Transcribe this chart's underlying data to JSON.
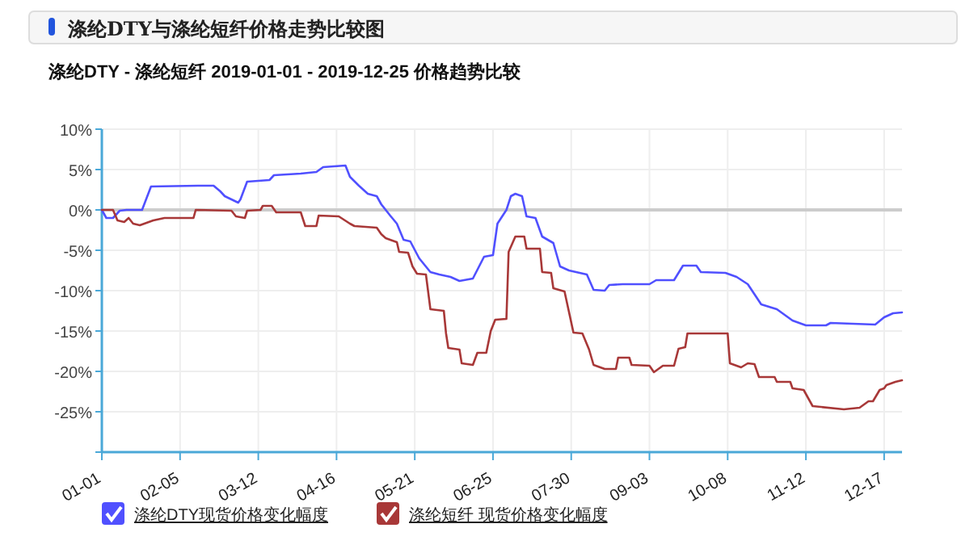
{
  "chart_data": {
    "type": "line",
    "title": "涤纶DTY与涤纶短纤价格走势比较图",
    "subtitle": "涤纶DTY - 涤纶短纤 2019-01-01 - 2019-12-25 价格趋势比较",
    "xlim": [
      "2019-01-01",
      "2019-12-25"
    ],
    "xticks": [
      {
        "value": "2019-01-01",
        "label": "01-01"
      },
      {
        "value": "2019-02-05",
        "label": "02-05"
      },
      {
        "value": "2019-03-12",
        "label": "03-12"
      },
      {
        "value": "2019-04-16",
        "label": "04-16"
      },
      {
        "value": "2019-05-21",
        "label": "05-21"
      },
      {
        "value": "2019-06-25",
        "label": "06-25"
      },
      {
        "value": "2019-07-30",
        "label": "07-30"
      },
      {
        "value": "2019-09-03",
        "label": "09-03"
      },
      {
        "value": "2019-10-08",
        "label": "10-08"
      },
      {
        "value": "2019-11-12",
        "label": "11-12"
      },
      {
        "value": "2019-12-17",
        "label": "12-17"
      }
    ],
    "ylim": [
      -30,
      10
    ],
    "yticks": [
      {
        "value": -30,
        "label": null
      },
      {
        "value": -25,
        "label": "-25%"
      },
      {
        "value": -20,
        "label": "-20%"
      },
      {
        "value": -15,
        "label": "-15%"
      },
      {
        "value": -10,
        "label": "-10%"
      },
      {
        "value": -5,
        "label": "-5%"
      },
      {
        "value": 0,
        "label": "0%"
      },
      {
        "value": 5,
        "label": "5%"
      },
      {
        "value": 10,
        "label": "10%"
      }
    ],
    "grid": true,
    "legend": "bottom",
    "marker": "none",
    "line_style": "solid",
    "ref_lines": [
      {
        "axis": "y",
        "value": 0,
        "label": null,
        "color": "#cccccc"
      }
    ],
    "series": [
      {
        "name": "涤纶DTY现货价格变化幅度",
        "color": "#5050ff",
        "x": [
          "2019-01-01",
          "2019-01-03",
          "2019-01-06",
          "2019-01-09",
          "2019-01-12",
          "2019-01-19",
          "2019-01-23",
          "2019-02-13",
          "2019-02-20",
          "2019-02-23",
          "2019-02-25",
          "2019-03-03",
          "2019-03-04",
          "2019-03-07",
          "2019-03-17",
          "2019-03-19",
          "2019-03-31",
          "2019-04-07",
          "2019-04-10",
          "2019-04-20",
          "2019-04-22",
          "2019-04-26",
          "2019-04-30",
          "2019-05-04",
          "2019-05-06",
          "2019-05-10",
          "2019-05-13",
          "2019-05-16",
          "2019-05-19",
          "2019-05-23",
          "2019-05-28",
          "2019-06-01",
          "2019-06-06",
          "2019-06-10",
          "2019-06-16",
          "2019-06-21",
          "2019-06-25",
          "2019-06-27",
          "2019-07-01",
          "2019-07-03",
          "2019-07-05",
          "2019-07-08",
          "2019-07-10",
          "2019-07-14",
          "2019-07-17",
          "2019-07-22",
          "2019-07-25",
          "2019-07-29",
          "2019-08-06",
          "2019-08-09",
          "2019-08-14",
          "2019-08-16",
          "2019-08-22",
          "2019-09-03",
          "2019-09-06",
          "2019-09-14",
          "2019-09-18",
          "2019-09-24",
          "2019-09-26",
          "2019-10-07",
          "2019-10-12",
          "2019-10-17",
          "2019-10-23",
          "2019-10-30",
          "2019-11-06",
          "2019-11-12",
          "2019-11-21",
          "2019-11-23",
          "2019-12-13",
          "2019-12-17",
          "2019-12-21",
          "2019-12-25"
        ],
        "values": [
          0,
          -1,
          -1,
          -0.1,
          0,
          0,
          2.9,
          3,
          3,
          2.3,
          1.7,
          0.9,
          1.3,
          3.5,
          3.7,
          4.3,
          4.5,
          4.7,
          5.3,
          5.5,
          4.1,
          3,
          2,
          1.7,
          0.7,
          -0.7,
          -1.7,
          -3.7,
          -3.9,
          -6,
          -7.7,
          -8,
          -8.3,
          -8.8,
          -8.5,
          -5.8,
          -5.6,
          -1.7,
          0,
          1.7,
          2,
          1.7,
          -0.8,
          -1,
          -3.3,
          -4.1,
          -7,
          -7.5,
          -8,
          -9.9,
          -10,
          -9.3,
          -9.2,
          -9.2,
          -8.7,
          -8.7,
          -6.9,
          -6.9,
          -7.7,
          -7.8,
          -8.3,
          -9.2,
          -11.7,
          -12.3,
          -13.7,
          -14.3,
          -14.3,
          -14,
          -14.2,
          -13.3,
          -12.8,
          -12.7
        ]
      },
      {
        "name": "涤纶短纤 现货价格变化幅度",
        "color": "#a83838",
        "x": [
          "2019-01-01",
          "2019-01-06",
          "2019-01-08",
          "2019-01-11",
          "2019-01-13",
          "2019-01-15",
          "2019-01-18",
          "2019-01-24",
          "2019-01-29",
          "2019-02-11",
          "2019-02-12",
          "2019-02-28",
          "2019-03-02",
          "2019-03-06",
          "2019-03-07",
          "2019-03-13",
          "2019-03-14",
          "2019-03-18",
          "2019-03-20",
          "2019-03-31",
          "2019-04-02",
          "2019-04-07",
          "2019-04-08",
          "2019-04-17",
          "2019-04-22",
          "2019-04-24",
          "2019-05-04",
          "2019-05-06",
          "2019-05-08",
          "2019-05-13",
          "2019-05-14",
          "2019-05-18",
          "2019-05-20",
          "2019-05-22",
          "2019-05-26",
          "2019-05-28",
          "2019-06-03",
          "2019-06-04",
          "2019-06-05",
          "2019-06-10",
          "2019-06-11",
          "2019-06-16",
          "2019-06-18",
          "2019-06-22",
          "2019-06-24",
          "2019-06-26",
          "2019-07-01",
          "2019-07-02",
          "2019-07-05",
          "2019-07-09",
          "2019-07-10",
          "2019-07-16",
          "2019-07-17",
          "2019-07-21",
          "2019-07-22",
          "2019-07-27",
          "2019-07-31",
          "2019-08-04",
          "2019-08-07",
          "2019-08-09",
          "2019-08-14",
          "2019-08-19",
          "2019-08-20",
          "2019-08-25",
          "2019-08-26",
          "2019-09-03",
          "2019-09-05",
          "2019-09-09",
          "2019-09-14",
          "2019-09-16",
          "2019-09-19",
          "2019-09-20",
          "2019-10-08",
          "2019-10-09",
          "2019-10-14",
          "2019-10-17",
          "2019-10-20",
          "2019-10-22",
          "2019-10-29",
          "2019-10-30",
          "2019-11-05",
          "2019-11-06",
          "2019-11-11",
          "2019-11-15",
          "2019-11-29",
          "2019-12-06",
          "2019-12-10",
          "2019-12-12",
          "2019-12-15",
          "2019-12-17",
          "2019-12-18",
          "2019-12-22",
          "2019-12-25"
        ],
        "values": [
          0,
          0,
          -1.3,
          -1.5,
          -1,
          -1.7,
          -1.9,
          -1.3,
          -1,
          -1,
          0,
          -0.1,
          -0.8,
          -1,
          -0.1,
          0,
          0.5,
          0.5,
          -0.3,
          -0.3,
          -2,
          -2,
          -0.7,
          -0.8,
          -1.7,
          -2,
          -2.2,
          -3,
          -3.5,
          -4,
          -5.2,
          -5.3,
          -7,
          -7.9,
          -8,
          -12.3,
          -12.5,
          -15.3,
          -17.1,
          -17.3,
          -19,
          -19.2,
          -17.7,
          -17.7,
          -15,
          -13.6,
          -13.5,
          -5.2,
          -3.3,
          -3.3,
          -4.8,
          -4.8,
          -7.7,
          -7.8,
          -9.7,
          -10.1,
          -15.2,
          -15.3,
          -17.3,
          -19.2,
          -19.7,
          -19.7,
          -18.3,
          -18.3,
          -19.2,
          -19.3,
          -20.1,
          -19.3,
          -19.3,
          -17.2,
          -17,
          -15.3,
          -15.3,
          -19,
          -19.5,
          -19,
          -19.1,
          -20.7,
          -20.7,
          -21.3,
          -21.3,
          -22.1,
          -22.3,
          -24.3,
          -24.7,
          -24.5,
          -23.7,
          -23.7,
          -22.3,
          -22.1,
          -21.7,
          -21.3,
          -21.1
        ]
      }
    ]
  }
}
